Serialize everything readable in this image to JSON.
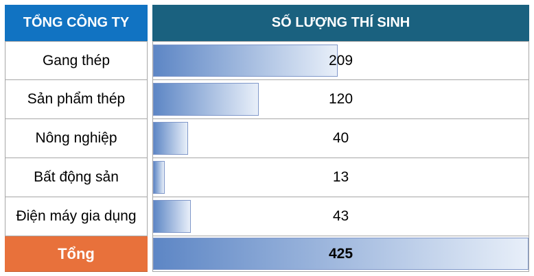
{
  "header": {
    "left": "TỔNG CÔNG TY",
    "right": "SỐ LƯỢNG THÍ SINH"
  },
  "chart_data": {
    "type": "bar",
    "orientation": "horizontal",
    "categories": [
      "Gang thép",
      "Sản phẩm thép",
      "Nông nghiệp",
      "Bất động sản",
      "Điện máy gia dụng"
    ],
    "values": [
      209,
      120,
      40,
      13,
      43
    ],
    "total_label": "Tổng",
    "total_value": 425,
    "bar_scale_max": 425,
    "xlabel": "SỐ LƯỢNG THÍ SINH",
    "ylabel": "TỔNG CÔNG TY",
    "xlim": [
      0,
      425
    ],
    "grid": false,
    "legend": false
  },
  "colors": {
    "header_left_bg": "#1173C2",
    "header_right_bg": "#1A617F",
    "header_text": "#FFFFFF",
    "total_row_bg": "#E8713B",
    "bar_gradient_start": "#5D86C5",
    "bar_gradient_end": "#E8EFF9",
    "bar_border": "#7F97C9",
    "row_border": "#A6A6A6",
    "body_text": "#000000"
  }
}
